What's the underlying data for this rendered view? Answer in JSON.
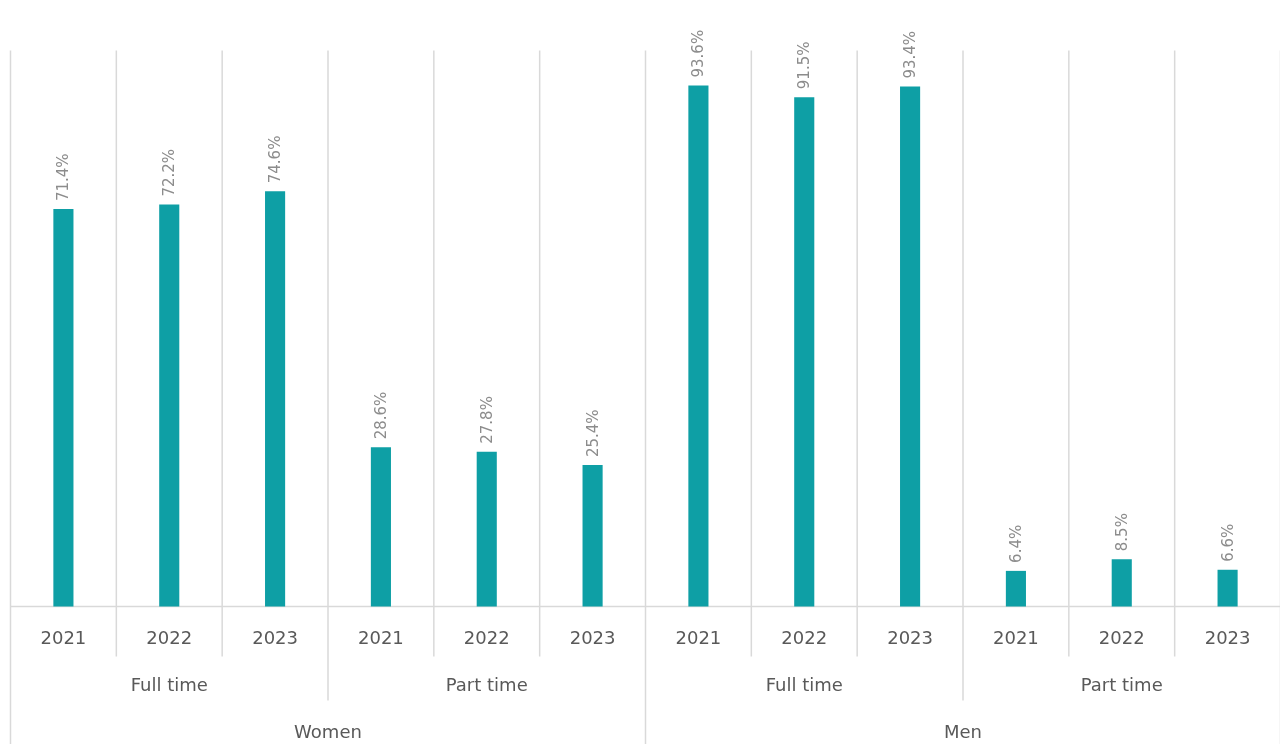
{
  "chart_data": {
    "type": "bar",
    "categories": [
      "2021",
      "2022",
      "2023",
      "2021",
      "2022",
      "2023",
      "2021",
      "2022",
      "2023",
      "2021",
      "2022",
      "2023"
    ],
    "values": [
      71.4,
      72.2,
      74.6,
      28.6,
      27.8,
      25.4,
      93.6,
      91.5,
      93.4,
      6.4,
      8.5,
      6.6
    ],
    "value_labels": [
      "71.4%",
      "72.2%",
      "74.6%",
      "28.6%",
      "27.8%",
      "25.4%",
      "93.6%",
      "91.5%",
      "93.4%",
      "6.4%",
      "8.5%",
      "6.6%"
    ],
    "color": "#0e9fa5",
    "annotations": [
      "Full time",
      "Part time",
      "Full time",
      "Part time",
      "Women",
      "Men"
    ],
    "grid": "x"
  }
}
